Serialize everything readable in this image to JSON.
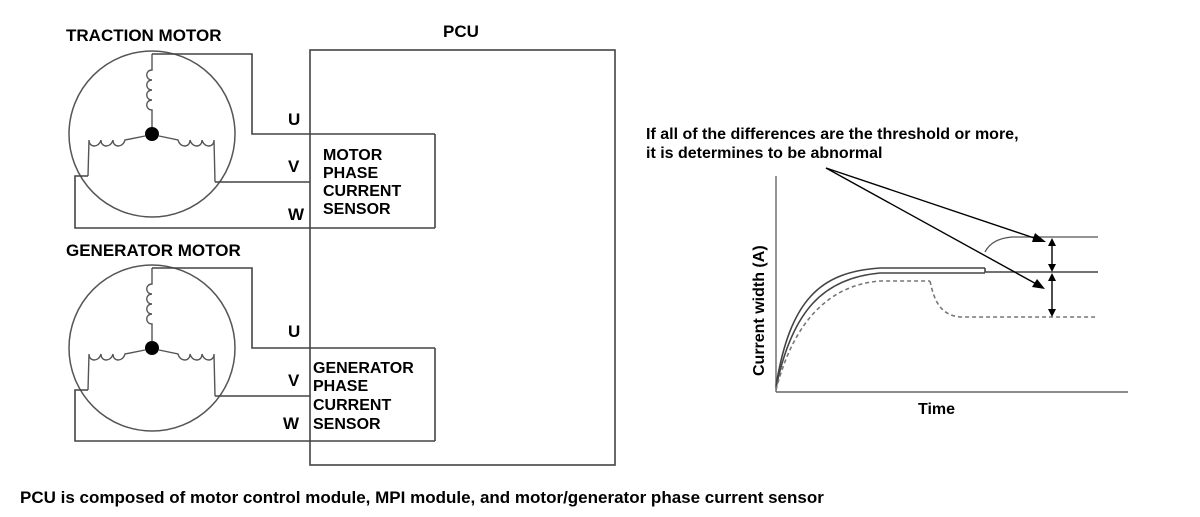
{
  "traction": {
    "title": "TRACTION MOTOR",
    "u": "U",
    "v": "V",
    "w": "W",
    "sensor_lines": [
      "MOTOR",
      "PHASE",
      "CURRENT",
      "SENSOR"
    ]
  },
  "generator": {
    "title": "GENERATOR MOTOR",
    "u": "U",
    "v": "V",
    "w": "W",
    "sensor_lines": [
      "GENERATOR",
      "PHASE",
      "CURRENT",
      "SENSOR"
    ]
  },
  "pcu": {
    "title": "PCU"
  },
  "graph": {
    "note_line1": "If all of the differences are the threshold or more,",
    "note_line2": "it is determines to be abnormal",
    "ylabel": "Current width (A)",
    "xlabel": "Time"
  },
  "caption": "PCU is composed of motor control module, MPI module, and motor/generator phase current sensor"
}
